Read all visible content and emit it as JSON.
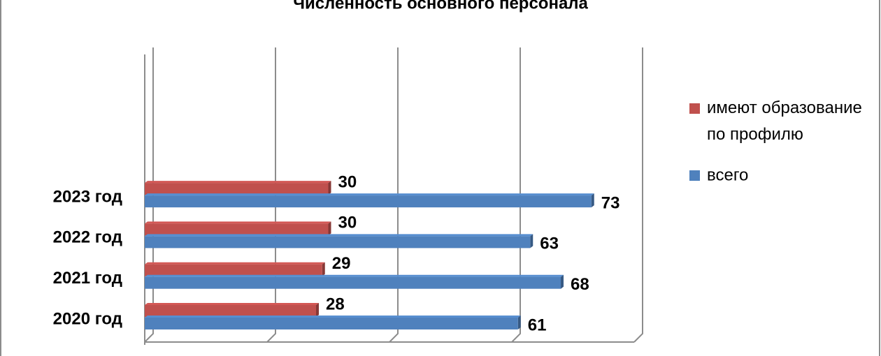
{
  "chart_data": {
    "type": "bar",
    "orientation": "horizontal",
    "title": "Численность основного персонала",
    "categories": [
      "2020 год",
      "2021 год",
      "2022 год",
      "2023 год"
    ],
    "series": [
      {
        "name": " имеют образование по профилю",
        "color": "#c0504d",
        "values": [
          28,
          29,
          30,
          30
        ]
      },
      {
        "name": "всего",
        "color": "#4f81bd",
        "values": [
          61,
          68,
          63,
          73
        ]
      }
    ],
    "xlim": [
      0,
      80
    ],
    "xticks": [
      0,
      20,
      40,
      60,
      80
    ],
    "grid": true,
    "legend": "right"
  }
}
